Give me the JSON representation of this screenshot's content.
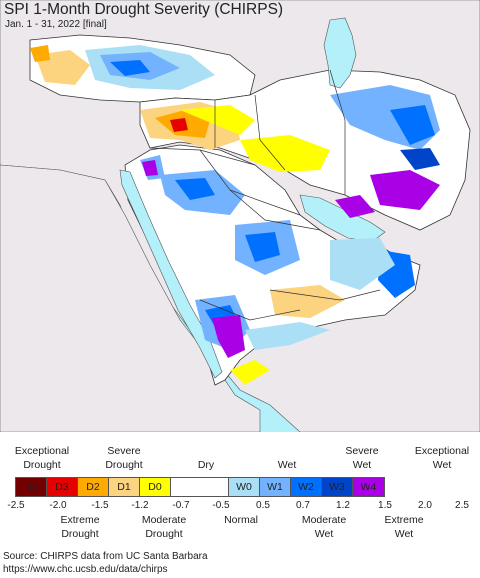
{
  "title": "SPI 1-Month Drought Severity (CHIRPS)",
  "subtitle": "Jan. 1 - 31, 2022 [final]",
  "legend": {
    "top_labels": [
      {
        "line1": "Exceptional",
        "line2": "Drought"
      },
      {
        "line1": "Severe",
        "line2": "Drought"
      },
      {
        "line1": "Dry",
        "line2": ""
      },
      {
        "line1": "Wet",
        "line2": ""
      },
      {
        "line1": "Severe",
        "line2": "Wet"
      },
      {
        "line1": "Exceptional",
        "line2": "Wet"
      }
    ],
    "categories": [
      {
        "code": "D4",
        "color": "#730000"
      },
      {
        "code": "D3",
        "color": "#e60000"
      },
      {
        "code": "D2",
        "color": "#ffaa00"
      },
      {
        "code": "D1",
        "color": "#fcd37f"
      },
      {
        "code": "D0",
        "color": "#ffff00"
      },
      {
        "code": "",
        "color": "#ffffff"
      },
      {
        "code": "W0",
        "color": "#aadff6"
      },
      {
        "code": "W1",
        "color": "#73b2ff"
      },
      {
        "code": "W2",
        "color": "#0070ff"
      },
      {
        "code": "W3",
        "color": "#0045c9"
      },
      {
        "code": "W4",
        "color": "#a900e6"
      }
    ],
    "ticks": [
      "-2.5",
      "-2.0",
      "-1.5",
      "-1.2",
      "-0.7",
      "-0.5",
      "0.5",
      "0.7",
      "1.2",
      "1.5",
      "2.0",
      "2.5"
    ],
    "bottom_labels": [
      {
        "line1": "Extreme",
        "line2": "Drought"
      },
      {
        "line1": "Moderate",
        "line2": "Drought"
      },
      {
        "line1": "Normal",
        "line2": ""
      },
      {
        "line1": "Moderate",
        "line2": "Wet"
      },
      {
        "line1": "Extreme",
        "line2": "Wet"
      }
    ]
  },
  "source": {
    "line1": "Source: CHIRPS data from UC Santa Barbara",
    "line2": "https://www.chc.ucsb.edu/data/chirps"
  },
  "colors": {
    "water": "#b4f0fa",
    "land_outside": "#ece8ec",
    "border": "#333333"
  }
}
